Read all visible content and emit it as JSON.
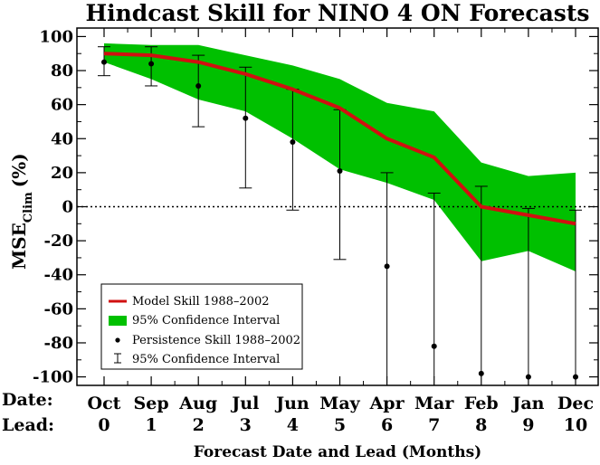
{
  "chart_data": {
    "type": "line",
    "title": "Hindcast Skill for NINO 4 ON Forecasts",
    "xlabel": "Forecast Date and Lead (Months)",
    "ylabel_main": "MSE",
    "ylabel_sub": "Clim",
    "ylabel_unit": "(%)",
    "row_labels": {
      "date": "Date:",
      "lead": "Lead:"
    },
    "categories": [
      "Oct",
      "Sep",
      "Aug",
      "Jul",
      "Jun",
      "May",
      "Apr",
      "Mar",
      "Feb",
      "Jan",
      "Dec"
    ],
    "leads": [
      "0",
      "1",
      "2",
      "3",
      "4",
      "5",
      "6",
      "7",
      "8",
      "9",
      "10"
    ],
    "ylim": [
      -105,
      105
    ],
    "yticks": [
      -100,
      -80,
      -60,
      -40,
      -20,
      0,
      20,
      40,
      60,
      80,
      100
    ],
    "zero_line": "dotted",
    "legend_position": "bottom-left",
    "colors": {
      "model": "#d01010",
      "band": "#00c000",
      "persistence": "#000000"
    },
    "series": [
      {
        "name": "Model Skill 1988–2002",
        "values": [
          90,
          89,
          85,
          78,
          69,
          58,
          40,
          29,
          0,
          -5,
          -10
        ]
      },
      {
        "name": "95% Confidence Interval",
        "lower": [
          85,
          75,
          63,
          56,
          40,
          22,
          14,
          4,
          -32,
          -26,
          -38
        ],
        "upper": [
          96,
          95,
          95,
          89,
          83,
          75,
          61,
          56,
          26,
          18,
          20
        ]
      },
      {
        "name": "Persistence Skill 1988–2002",
        "values": [
          85,
          84,
          71,
          52,
          38,
          21,
          -35,
          -82,
          -98,
          -100,
          -100
        ]
      },
      {
        "name": "95% Confidence Interval",
        "lower": [
          77,
          71,
          47,
          11,
          -2,
          -31,
          -100,
          -100,
          -100,
          -100,
          -100
        ],
        "upper": [
          94,
          94,
          89,
          82,
          69,
          57,
          20,
          8,
          12,
          -1,
          -2
        ]
      }
    ]
  }
}
